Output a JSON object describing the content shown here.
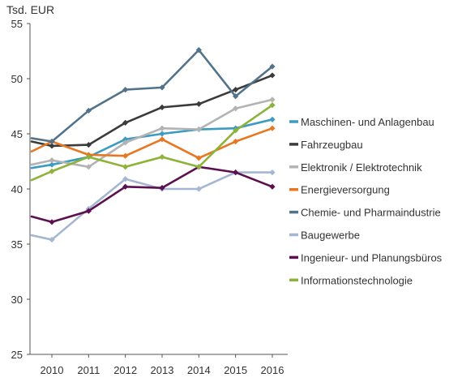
{
  "chart_data": {
    "type": "line",
    "unit_label": "Tsd. EUR",
    "x": [
      "2010",
      "2011",
      "2012",
      "2013",
      "2014",
      "2015",
      "2016"
    ],
    "ylim": [
      25,
      55
    ],
    "yticks": [
      "25",
      "30",
      "35",
      "40",
      "45",
      "50",
      "55"
    ],
    "grid": false,
    "legend_position": "right",
    "series": [
      {
        "name": "Maschinen- und Anlagenbau",
        "color": "#3d9bc1",
        "start": 41.9,
        "values": [
          42.2,
          42.9,
          44.5,
          45.0,
          45.4,
          45.5,
          46.3
        ]
      },
      {
        "name": "Fahrzeugbau",
        "color": "#3b3b3b",
        "start": 44.3,
        "values": [
          43.9,
          44.0,
          46.0,
          47.4,
          47.7,
          49.0,
          50.3
        ]
      },
      {
        "name": "Elektronik / Elektrotechnik",
        "color": "#b3b3b3",
        "start": 42.2,
        "values": [
          42.6,
          42.0,
          44.2,
          45.5,
          45.4,
          47.3,
          48.1
        ]
      },
      {
        "name": "Energieversorgung",
        "color": "#e87722",
        "start": 43.4,
        "values": [
          44.3,
          43.1,
          43.0,
          44.5,
          42.8,
          44.3,
          45.5
        ]
      },
      {
        "name": "Chemie- und Pharmaindustrie",
        "color": "#52738a",
        "start": 44.6,
        "values": [
          44.3,
          47.1,
          49.0,
          49.2,
          52.6,
          48.4,
          51.1
        ]
      },
      {
        "name": "Baugewerbe",
        "color": "#a5b6d2",
        "start": 35.8,
        "values": [
          35.4,
          38.2,
          40.9,
          40.0,
          40.0,
          41.5,
          41.5
        ]
      },
      {
        "name": "Ingenieur- und Planungsbüros",
        "color": "#5c1050",
        "start": 37.5,
        "values": [
          37.0,
          38.0,
          40.2,
          40.1,
          42.0,
          41.5,
          40.2
        ]
      },
      {
        "name": "Informationstechnologie",
        "color": "#8db33a",
        "start": 40.8,
        "values": [
          41.6,
          42.9,
          42.0,
          42.9,
          42.0,
          45.3,
          47.6
        ]
      }
    ]
  }
}
